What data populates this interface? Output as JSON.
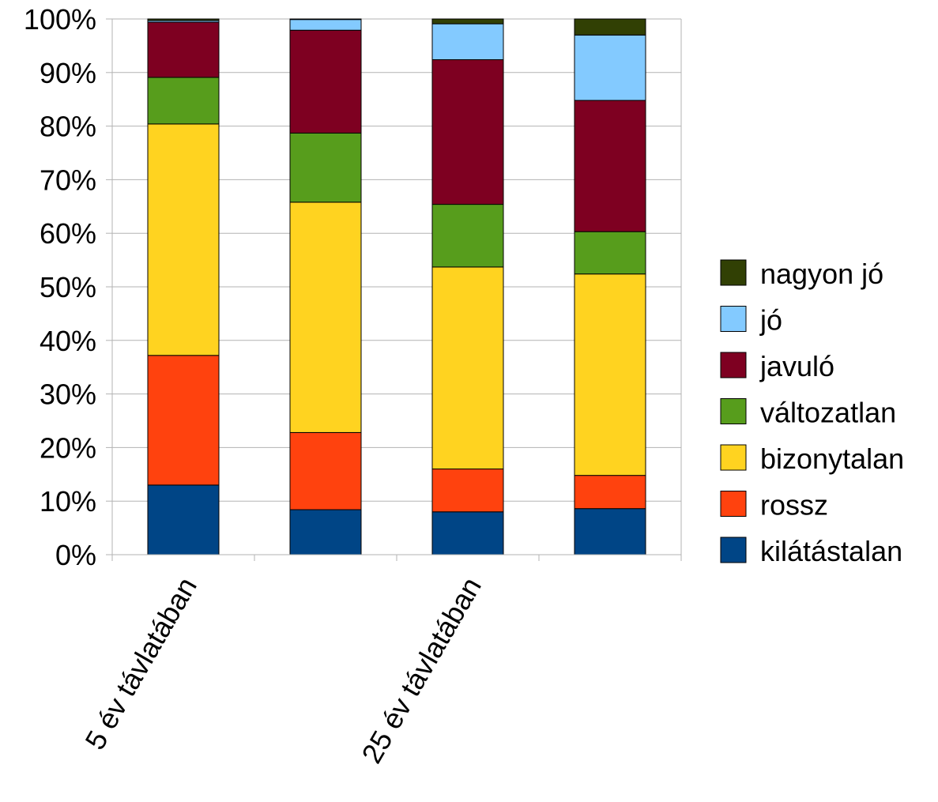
{
  "chart_data": {
    "type": "bar",
    "stacked": true,
    "percent_stacked": true,
    "title": "",
    "xlabel": "",
    "ylabel": "",
    "ylim": [
      0,
      100
    ],
    "yticks": [
      "0%",
      "10%",
      "20%",
      "30%",
      "40%",
      "50%",
      "60%",
      "70%",
      "80%",
      "90%",
      "100%"
    ],
    "categories": [
      "5 év távlatában",
      "",
      "25 év távlatában",
      ""
    ],
    "grid": true,
    "legend_position": "right",
    "series": [
      {
        "name": "kilátástalan",
        "color": "#004586",
        "values": [
          13.0,
          8.4,
          8.0,
          8.6
        ]
      },
      {
        "name": "rossz",
        "color": "#ff420e",
        "values": [
          24.2,
          14.4,
          8.0,
          6.2
        ]
      },
      {
        "name": "bizonytalan",
        "color": "#ffd320",
        "values": [
          43.2,
          43.0,
          37.7,
          37.6
        ]
      },
      {
        "name": "változatlan",
        "color": "#579d1c",
        "values": [
          8.7,
          12.9,
          11.7,
          7.9
        ]
      },
      {
        "name": "javuló",
        "color": "#7e0021",
        "values": [
          10.3,
          19.2,
          27.0,
          24.5
        ]
      },
      {
        "name": "jó",
        "color": "#83caff",
        "values": [
          0.3,
          2.0,
          6.7,
          12.2
        ]
      },
      {
        "name": "nagyon jó",
        "color": "#314004",
        "values": [
          0.3,
          0.1,
          0.9,
          3.0
        ]
      }
    ]
  }
}
